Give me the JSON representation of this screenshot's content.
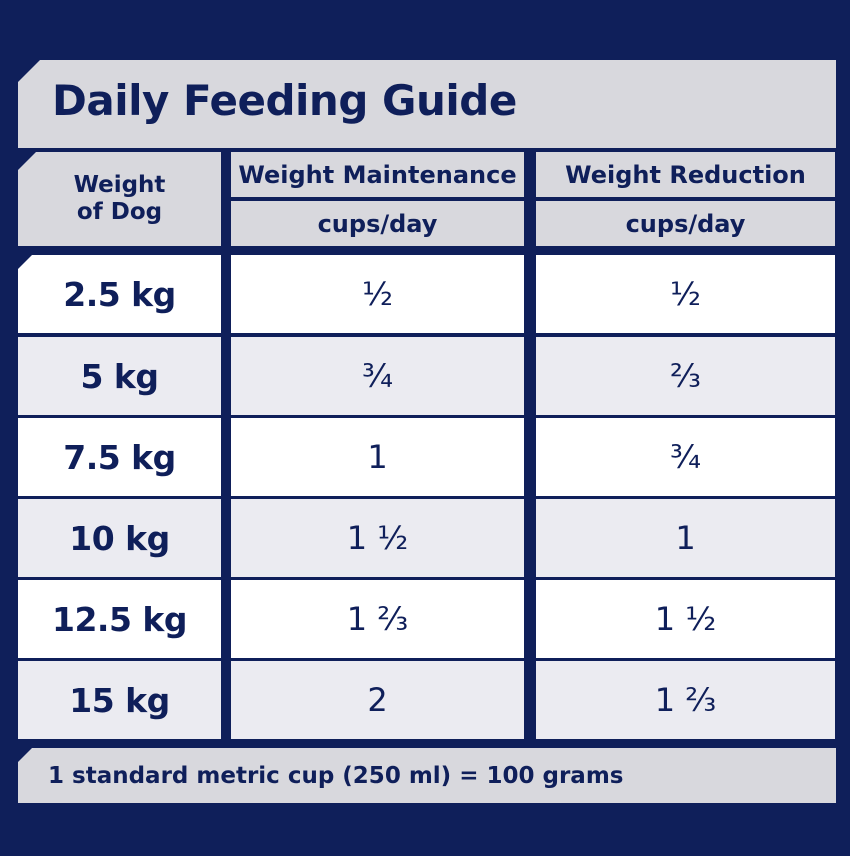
{
  "title": "Daily Feeding Guide",
  "header": {
    "weight_line1": "Weight",
    "weight_line2": "of Dog",
    "maintenance": "Weight Maintenance",
    "reduction": "Weight Reduction",
    "maintenance_unit": "cups/day",
    "reduction_unit": "cups/day"
  },
  "rows": [
    {
      "weight": "2.5 kg",
      "maintenance": "½",
      "reduction": "½"
    },
    {
      "weight": "5 kg",
      "maintenance": "¾",
      "reduction": "⅔"
    },
    {
      "weight": "7.5 kg",
      "maintenance": "1",
      "reduction": "¾"
    },
    {
      "weight": "10 kg",
      "maintenance": "1 ½",
      "reduction": "1"
    },
    {
      "weight": "12.5 kg",
      "maintenance": "1 ⅔",
      "reduction": "1 ½"
    },
    {
      "weight": "15 kg",
      "maintenance": "2",
      "reduction": "1 ⅔"
    }
  ],
  "footer": "1 standard metric cup (250 ml) = 100 grams",
  "colors": {
    "background": "#0f1f5a",
    "band": "#d8d8dd",
    "row_white": "#ffffff",
    "row_gray": "#ebebf1"
  }
}
